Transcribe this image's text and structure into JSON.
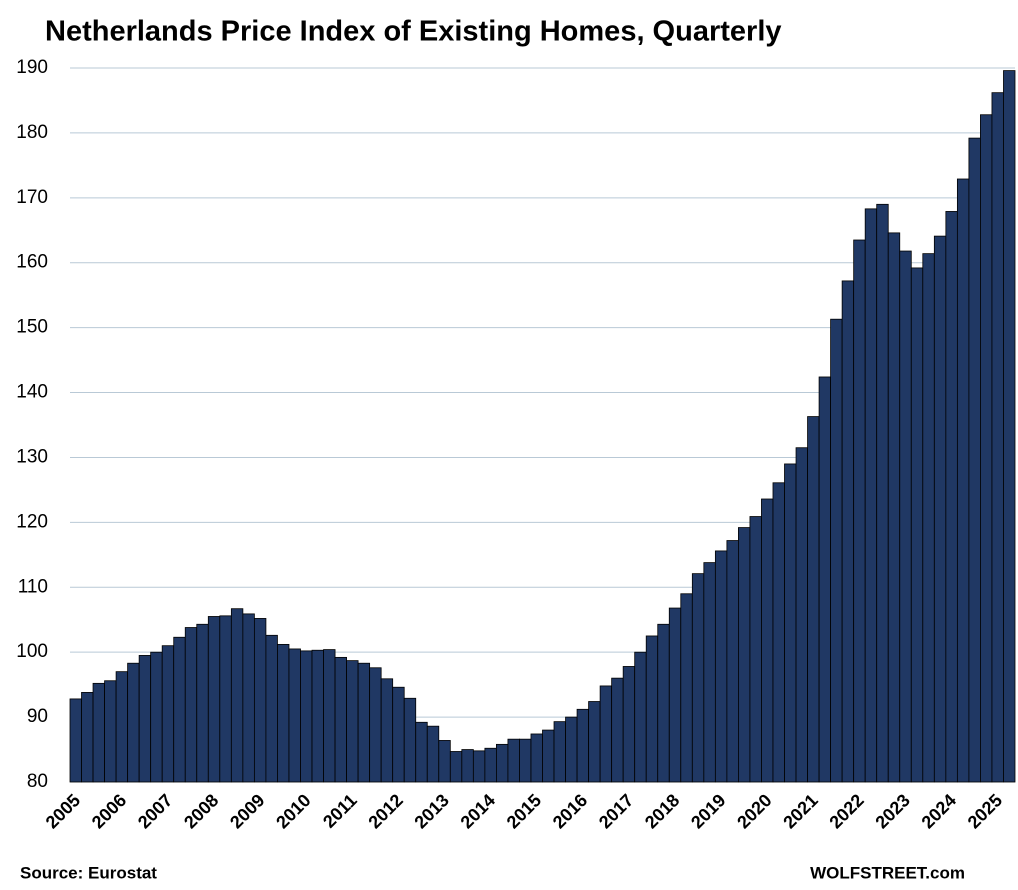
{
  "chart_data": {
    "type": "bar",
    "title": "Netherlands Price Index of Existing Homes, Quarterly",
    "source": "Source: Eurostat",
    "credit": "WOLFSTREET.com",
    "categories": [
      "2005",
      null,
      null,
      null,
      "2006",
      null,
      null,
      null,
      "2007",
      null,
      null,
      null,
      "2008",
      null,
      null,
      null,
      "2009",
      null,
      null,
      null,
      "2010",
      null,
      null,
      null,
      "2011",
      null,
      null,
      null,
      "2012",
      null,
      null,
      null,
      "2013",
      null,
      null,
      null,
      "2014",
      null,
      null,
      null,
      "2015",
      null,
      null,
      null,
      "2016",
      null,
      null,
      null,
      "2017",
      null,
      null,
      null,
      "2018",
      null,
      null,
      null,
      "2019",
      null,
      null,
      null,
      "2020",
      null,
      null,
      null,
      "2021",
      null,
      null,
      null,
      "2022",
      null,
      null,
      null,
      "2023",
      null,
      null,
      null,
      "2024",
      null,
      null,
      null,
      "2025",
      null
    ],
    "values": [
      92.8,
      93.8,
      95.2,
      95.6,
      97.0,
      98.3,
      99.5,
      100.0,
      101.0,
      102.3,
      103.8,
      104.3,
      105.5,
      105.6,
      106.7,
      105.9,
      105.2,
      102.6,
      101.2,
      100.5,
      100.2,
      100.3,
      100.4,
      99.2,
      98.7,
      98.3,
      97.6,
      95.9,
      94.6,
      92.9,
      89.2,
      88.6,
      86.4,
      84.7,
      85.0,
      84.8,
      85.2,
      85.8,
      86.6,
      86.6,
      87.4,
      88.0,
      89.3,
      90.0,
      91.2,
      92.4,
      94.8,
      96.0,
      97.8,
      100.0,
      102.5,
      104.3,
      106.8,
      109.0,
      112.1,
      113.8,
      115.6,
      117.2,
      119.2,
      120.9,
      123.6,
      126.1,
      129.0,
      131.5,
      136.3,
      142.4,
      151.3,
      157.2,
      163.5,
      168.3,
      169.0,
      164.6,
      161.8,
      159.2,
      161.4,
      164.1,
      167.9,
      172.9,
      179.2,
      182.8,
      186.2,
      189.6
    ],
    "color": "#203864",
    "ylim": [
      80,
      190
    ],
    "yticks": [
      80,
      90,
      100,
      110,
      120,
      130,
      140,
      150,
      160,
      170,
      180,
      190
    ],
    "grid": true
  }
}
